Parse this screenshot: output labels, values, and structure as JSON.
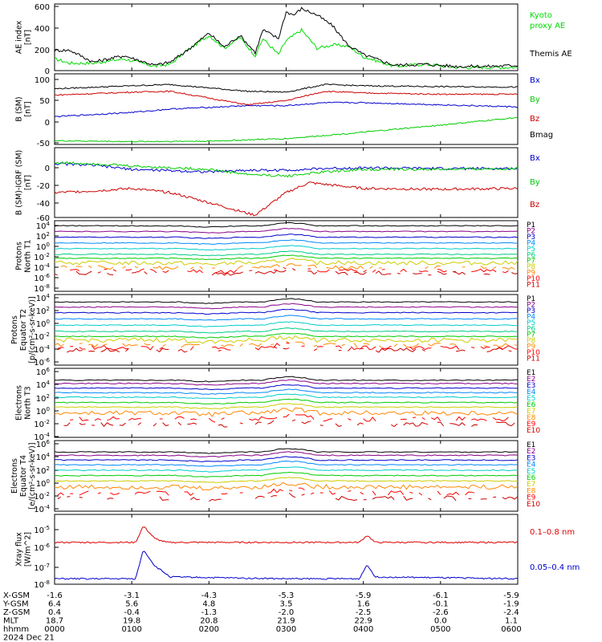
{
  "panels": [
    {
      "id": "ae",
      "ylabel": [
        "AE index",
        "[nT]"
      ],
      "ticks": [
        "600",
        "400",
        "200",
        "0"
      ],
      "legend": [
        {
          "text": "Kyoto",
          "color": "#00dd00"
        },
        {
          "text": "proxy AE",
          "color": "#00dd00"
        },
        {
          "text": "Themis AE",
          "color": "#000000"
        }
      ]
    },
    {
      "id": "bsm",
      "ylabel": [
        "B (SM)",
        "[nT]"
      ],
      "ticks": [
        "100",
        "50",
        "0",
        "-50"
      ],
      "legend": [
        {
          "text": "Bx",
          "color": "#0000cc"
        },
        {
          "text": "By",
          "color": "#00cc00"
        },
        {
          "text": "Bz",
          "color": "#cc0000"
        },
        {
          "text": "Bmag",
          "color": "#000000"
        }
      ]
    },
    {
      "id": "bigrf",
      "ylabel": [
        "B (SM)-IGRF (SM)",
        "[nT]"
      ],
      "ticks": [
        "0",
        "-20",
        "-40",
        "-60"
      ],
      "legend": [
        {
          "text": "Bx",
          "color": "#0000cc"
        },
        {
          "text": "By",
          "color": "#00cc00"
        },
        {
          "text": "Bz",
          "color": "#cc0000"
        }
      ]
    },
    {
      "id": "pt1",
      "ylabel": [
        "Protons",
        "North T1"
      ],
      "ticks": [
        "10^4",
        "10^2",
        "10^0",
        "10^-2",
        "10^-4",
        "10^-6",
        "10^-8"
      ],
      "legend": [
        {
          "text": "P1",
          "color": "#000000"
        },
        {
          "text": "P2",
          "color": "#880088"
        },
        {
          "text": "P3",
          "color": "#0000cc"
        },
        {
          "text": "P4",
          "color": "#0088ff"
        },
        {
          "text": "P5",
          "color": "#00cccc"
        },
        {
          "text": "P6",
          "color": "#00cc88"
        },
        {
          "text": "P7",
          "color": "#00cc00"
        },
        {
          "text": "P8",
          "color": "#cccc00"
        },
        {
          "text": "P9",
          "color": "#ff8800"
        },
        {
          "text": "P10",
          "color": "#ff0000"
        },
        {
          "text": "P11",
          "color": "#cc0000"
        }
      ]
    },
    {
      "id": "pt2",
      "ylabel": [
        "Protons",
        "Equator T2",
        "[p/(cm²-s-sr-keV)]"
      ],
      "ticks": [
        "10^4",
        "10^2",
        "10^0",
        "10^-2",
        "10^-4",
        "10^-6"
      ],
      "legend": [
        {
          "text": "P1",
          "color": "#000000"
        },
        {
          "text": "P2",
          "color": "#880088"
        },
        {
          "text": "P3",
          "color": "#0000cc"
        },
        {
          "text": "P4",
          "color": "#0088ff"
        },
        {
          "text": "P5",
          "color": "#00cccc"
        },
        {
          "text": "P6",
          "color": "#00cc88"
        },
        {
          "text": "P7",
          "color": "#00cc00"
        },
        {
          "text": "P8",
          "color": "#cccc00"
        },
        {
          "text": "P9",
          "color": "#ff8800"
        },
        {
          "text": "P10",
          "color": "#ff0000"
        },
        {
          "text": "P11",
          "color": "#cc0000"
        }
      ]
    },
    {
      "id": "et3",
      "ylabel": [
        "Electrons",
        "North T3"
      ],
      "ticks": [
        "10^6",
        "10^4",
        "10^2",
        "10^0",
        "10^-2",
        "10^-4"
      ],
      "legend": [
        {
          "text": "E1",
          "color": "#000000"
        },
        {
          "text": "E2",
          "color": "#880088"
        },
        {
          "text": "E3",
          "color": "#0000cc"
        },
        {
          "text": "E4",
          "color": "#0088ff"
        },
        {
          "text": "E5",
          "color": "#00cccc"
        },
        {
          "text": "E6",
          "color": "#00cc00"
        },
        {
          "text": "E7",
          "color": "#cccc00"
        },
        {
          "text": "E8",
          "color": "#ff8800"
        },
        {
          "text": "E9",
          "color": "#ff0000"
        },
        {
          "text": "E10",
          "color": "#cc0000"
        }
      ]
    },
    {
      "id": "et4",
      "ylabel": [
        "Electrons",
        "Equator T4",
        "[e/(cm²-s-sr-keV)]"
      ],
      "ticks": [
        "10^6",
        "10^4",
        "10^2",
        "10^0",
        "10^-2",
        "10^-4"
      ],
      "legend": [
        {
          "text": "E1",
          "color": "#000000"
        },
        {
          "text": "E2",
          "color": "#880088"
        },
        {
          "text": "E3",
          "color": "#0000cc"
        },
        {
          "text": "E4",
          "color": "#0088ff"
        },
        {
          "text": "E5",
          "color": "#00cccc"
        },
        {
          "text": "E6",
          "color": "#00cc00"
        },
        {
          "text": "E7",
          "color": "#cccc00"
        },
        {
          "text": "E8",
          "color": "#ff8800"
        },
        {
          "text": "E9",
          "color": "#ff0000"
        },
        {
          "text": "E10",
          "color": "#cc0000"
        }
      ]
    },
    {
      "id": "xray",
      "ylabel": [
        "Xray flux",
        "[W/m^2]"
      ],
      "ticks": [
        "10^-5",
        "10^-6",
        "10^-7",
        "10^-8"
      ],
      "legend": [
        {
          "text": "0.1–0.8 nm",
          "color": "#dd0000"
        },
        {
          "text": "0.05–0.4 nm",
          "color": "#0000cc"
        }
      ]
    }
  ],
  "footer": {
    "rows": [
      {
        "label": "X-GSM",
        "values": [
          "-1.6",
          "-3.1",
          "-4.3",
          "-5.3",
          "-5.9",
          "-6.1",
          "-5.9"
        ]
      },
      {
        "label": "Y-GSM",
        "values": [
          "6.4",
          "5.6",
          "4.8",
          "3.5",
          "1.6",
          "-0.1",
          "-1.9"
        ]
      },
      {
        "label": "Z-GSM",
        "values": [
          "0.4",
          "-0.4",
          "-1.3",
          "-2.0",
          "-2.5",
          "-2.6",
          "-2.4"
        ]
      },
      {
        "label": "MLT",
        "values": [
          "18.7",
          "19.8",
          "20.8",
          "21.9",
          "22.9",
          "0.0",
          "1.1"
        ]
      },
      {
        "label": "hhmm",
        "values": [
          "0000",
          "0100",
          "0200",
          "0300",
          "0400",
          "0500",
          "0600"
        ]
      }
    ],
    "date": "2024 Dec 21"
  },
  "chart_data": {
    "type": "line",
    "x": [
      "0000",
      "0100",
      "0200",
      "0300",
      "0400",
      "0500",
      "0600"
    ],
    "xlabel": "hhmm",
    "series": [
      {
        "name": "Kyoto proxy AE",
        "panel": "ae",
        "color": "#00dd00",
        "x": [
          0,
          0.2,
          0.5,
          0.9,
          1.3,
          1.5,
          1.7,
          2.0,
          2.2,
          2.4,
          2.6,
          2.7,
          2.9,
          3.0,
          3.2,
          3.4,
          3.6,
          3.8,
          4.0,
          4.4,
          4.8,
          5.2,
          5.6,
          6.0
        ],
        "values": [
          110,
          70,
          70,
          110,
          40,
          60,
          180,
          330,
          210,
          310,
          140,
          300,
          150,
          280,
          380,
          210,
          240,
          230,
          130,
          40,
          60,
          30,
          30,
          30
        ]
      },
      {
        "name": "Themis AE",
        "panel": "ae",
        "color": "#000000",
        "x": [
          0,
          0.2,
          0.5,
          0.9,
          1.3,
          1.5,
          1.7,
          2.0,
          2.2,
          2.4,
          2.6,
          2.7,
          2.9,
          3.0,
          3.1,
          3.2,
          3.4,
          3.6,
          3.8,
          4.0,
          4.4,
          4.8,
          5.2,
          5.6,
          6.0
        ],
        "values": [
          190,
          190,
          80,
          140,
          50,
          80,
          180,
          350,
          220,
          330,
          170,
          380,
          300,
          550,
          520,
          580,
          520,
          420,
          240,
          150,
          50,
          60,
          40,
          40,
          50
        ]
      },
      {
        "name": "Bmag",
        "panel": "bsm",
        "color": "#000000",
        "x": [
          0,
          1,
          1.5,
          2.5,
          3,
          3.5,
          4,
          5,
          6
        ],
        "values": [
          78,
          85,
          88,
          72,
          70,
          88,
          85,
          83,
          82
        ]
      },
      {
        "name": "Bz",
        "panel": "bsm",
        "color": "#cc0000",
        "x": [
          0,
          1,
          1.5,
          2.5,
          3,
          3.5,
          4,
          5,
          6
        ],
        "values": [
          63,
          70,
          72,
          40,
          50,
          72,
          68,
          65,
          65
        ]
      },
      {
        "name": "Bx",
        "panel": "bsm",
        "color": "#0000cc",
        "x": [
          0,
          1,
          1.5,
          2.5,
          3,
          3.5,
          4,
          5,
          6
        ],
        "values": [
          12,
          22,
          30,
          38,
          38,
          45,
          45,
          40,
          35
        ]
      },
      {
        "name": "By",
        "panel": "bsm",
        "color": "#00cc00",
        "x": [
          0,
          1,
          2,
          3,
          4,
          5,
          6
        ],
        "values": [
          -45,
          -47,
          -46,
          -40,
          -25,
          -8,
          10
        ]
      },
      {
        "name": "Bx",
        "panel": "bigrf",
        "color": "#0000cc",
        "x": [
          0,
          0.5,
          1,
          2,
          2.5,
          3,
          3.5,
          4,
          5,
          6
        ],
        "values": [
          5,
          3,
          -2,
          -5,
          -3,
          -3,
          -1,
          0,
          -1,
          -1
        ]
      },
      {
        "name": "By",
        "panel": "bigrf",
        "color": "#00cc00",
        "x": [
          0,
          0.5,
          1,
          2,
          2.5,
          3,
          3.5,
          4,
          5,
          6
        ],
        "values": [
          6,
          5,
          2,
          -2,
          -8,
          -10,
          -5,
          -2,
          -2,
          -1
        ]
      },
      {
        "name": "Bz",
        "panel": "bigrf",
        "color": "#cc0000",
        "x": [
          0,
          0.5,
          1,
          1.5,
          2,
          2.5,
          2.6,
          3,
          3.3,
          3.5,
          4,
          5,
          6
        ],
        "values": [
          -30,
          -28,
          -25,
          -30,
          -42,
          -55,
          -57,
          -30,
          -18,
          -20,
          -25,
          -26,
          -25
        ]
      }
    ],
    "protons_north_t1": {
      "channels": [
        "P1",
        "P2",
        "P3",
        "P4",
        "P5",
        "P6",
        "P7",
        "P8",
        "P9",
        "P10",
        "P11"
      ],
      "log10_levels": [
        3.3,
        2.3,
        1.3,
        0.3,
        -0.7,
        -1.7,
        -2.4,
        -3.2,
        -4.0,
        -4.6,
        -5.0
      ]
    },
    "protons_equator_t2": {
      "channels": [
        "P1",
        "P2",
        "P3",
        "P4",
        "P5",
        "P6",
        "P7",
        "P8",
        "P9",
        "P10",
        "P11"
      ],
      "log10_levels": [
        3.3,
        2.5,
        1.6,
        0.6,
        -0.4,
        -1.4,
        -2.2,
        -2.8,
        -3.6,
        -4.0,
        -4.4
      ]
    },
    "electrons_north_t3": {
      "channels": [
        "E1",
        "E2",
        "E3",
        "E4",
        "E5",
        "E6",
        "E7",
        "E8",
        "E9",
        "E10"
      ],
      "log10_levels": [
        4.4,
        3.9,
        3.2,
        2.5,
        1.8,
        1.0,
        0.3,
        -0.6,
        -1.5,
        -2.3
      ]
    },
    "electrons_equator_t4": {
      "channels": [
        "E1",
        "E2",
        "E3",
        "E4",
        "E5",
        "E6",
        "E7",
        "E8",
        "E9",
        "E10"
      ],
      "log10_levels": [
        4.5,
        4.0,
        3.3,
        2.6,
        1.8,
        1.0,
        0.2,
        -0.7,
        -1.6,
        -2.4
      ]
    },
    "xray": [
      {
        "name": "0.1–0.8 nm",
        "color": "#dd0000",
        "x": [
          0,
          1.05,
          1.15,
          1.3,
          1.45,
          3.0,
          3.95,
          4.05,
          4.15,
          6.0
        ],
        "log10": [
          -5.7,
          -5.7,
          -4.8,
          -5.5,
          -5.7,
          -5.7,
          -5.7,
          -5.3,
          -5.7,
          -5.7
        ]
      },
      {
        "name": "0.05–0.4 nm",
        "color": "#0000cc",
        "x": [
          0,
          1.05,
          1.15,
          1.3,
          1.5,
          3.0,
          3.95,
          4.05,
          4.15,
          6.0
        ],
        "log10": [
          -7.7,
          -7.7,
          -6.1,
          -7.0,
          -7.6,
          -7.7,
          -7.7,
          -6.9,
          -7.6,
          -7.7
        ]
      }
    ]
  }
}
